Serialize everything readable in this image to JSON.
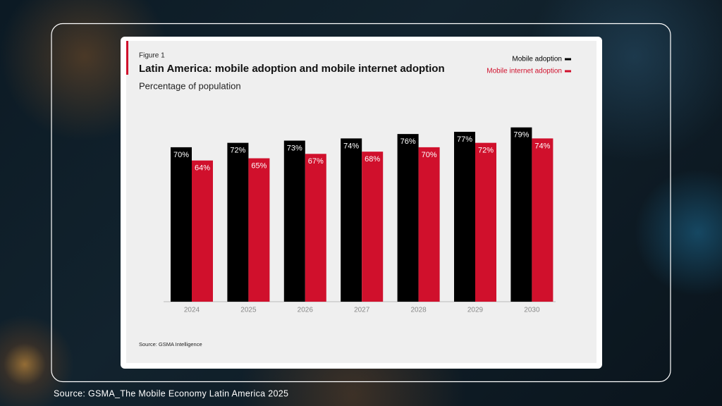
{
  "chart_data": {
    "type": "bar",
    "figure_label": "Figure 1",
    "title": "Latin America: mobile adoption and mobile internet adoption",
    "subtitle": "Percentage of population",
    "source": "Source: GSMA Intelligence",
    "categories": [
      "2024",
      "2025",
      "2026",
      "2027",
      "2028",
      "2029",
      "2030"
    ],
    "series": [
      {
        "name": "Mobile adoption",
        "color": "#000000",
        "values": [
          70,
          72,
          73,
          74,
          76,
          77,
          79
        ],
        "value_labels": [
          "70%",
          "72%",
          "73%",
          "74%",
          "76%",
          "77%",
          "79%"
        ]
      },
      {
        "name": "Mobile internet adoption",
        "color": "#d0102c",
        "values": [
          64,
          65,
          67,
          68,
          70,
          72,
          74
        ],
        "value_labels": [
          "64%",
          "65%",
          "67%",
          "68%",
          "70%",
          "72%",
          "74%"
        ]
      }
    ]
  },
  "footer": "Source: GSMA_The Mobile Economy Latin America 2025"
}
